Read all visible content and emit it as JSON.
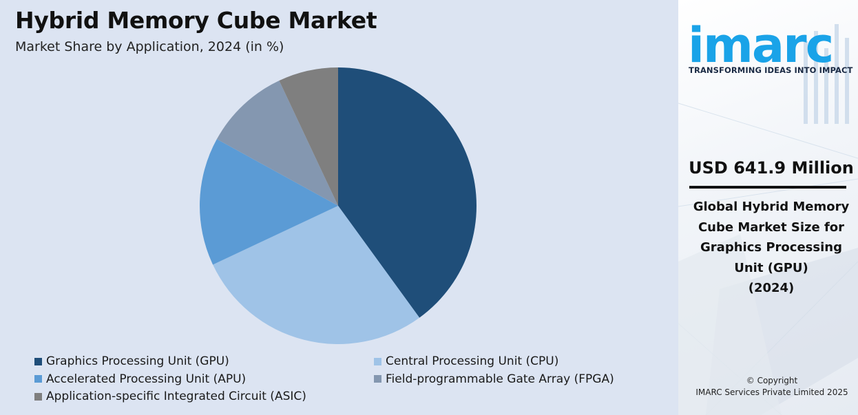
{
  "header": {
    "title": "Hybrid Memory Cube Market",
    "subtitle": "Market Share by Application, 2024 (in %)"
  },
  "chart_data": {
    "type": "pie",
    "title": "Hybrid Memory Cube Market",
    "subtitle": "Market Share by Application, 2024 (in %)",
    "categories": [
      "Graphics Processing Unit (GPU)",
      "Central Processing Unit (CPU)",
      "Accelerated Processing Unit (APU)",
      "Field-programmable Gate Array (FPGA)",
      "Application-specific Integrated Circuit (ASIC)"
    ],
    "values": [
      40,
      28,
      15,
      10,
      7
    ],
    "colors": [
      "#1f4e79",
      "#9fc3e7",
      "#5b9bd5",
      "#8497b0",
      "#7f7f7f"
    ],
    "start_angle_deg": 0,
    "direction": "clockwise",
    "legend_position": "bottom"
  },
  "sidebar": {
    "brand": "imarc",
    "tagline": "TRANSFORMING IDEAS INTO IMPACT",
    "brand_color": "#1aa3e8",
    "metric_value": "USD 641.9 Million",
    "metric_description_lines": [
      "Global Hybrid Memory",
      "Cube Market Size for",
      "Graphics Processing",
      "Unit (GPU)",
      "(2024)"
    ],
    "copyright_lines": [
      "© Copyright",
      "IMARC Services Private Limited 2025"
    ]
  }
}
